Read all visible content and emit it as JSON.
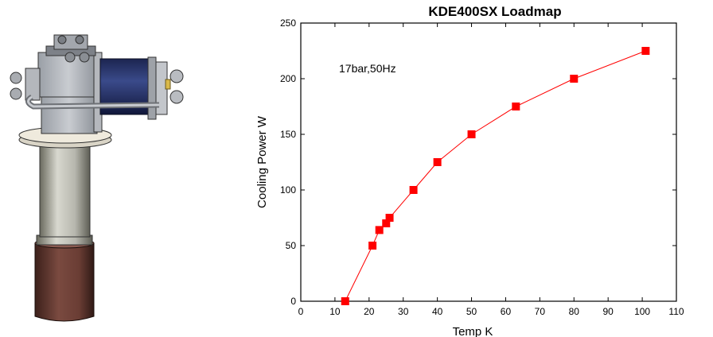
{
  "illustration": {
    "description_name": "cryocooler-cold-head"
  },
  "chart_data": {
    "type": "line",
    "title": "KDE400SX Loadmap",
    "xlabel": "Temp K",
    "ylabel": "Cooling Power W",
    "annotation": "17bar,50Hz",
    "xlim": [
      0,
      110
    ],
    "ylim": [
      0,
      250
    ],
    "xticks": [
      0,
      10,
      20,
      30,
      40,
      50,
      60,
      70,
      80,
      90,
      100,
      110
    ],
    "yticks": [
      0,
      50,
      100,
      150,
      200,
      250
    ],
    "grid": false,
    "legend": "none",
    "series": [
      {
        "color": "#ff0000",
        "marker": "square",
        "x": [
          13,
          21,
          23,
          25,
          26,
          33,
          40,
          50,
          63,
          80,
          101
        ],
        "y": [
          0,
          50,
          64,
          70,
          75,
          100,
          125,
          150,
          175,
          200,
          225
        ]
      }
    ]
  }
}
